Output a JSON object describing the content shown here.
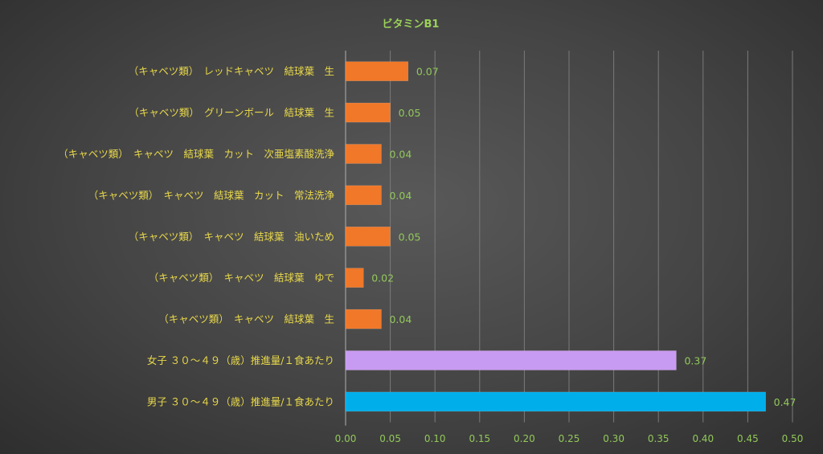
{
  "chart_data": {
    "type": "bar",
    "orientation": "horizontal",
    "title": "ビタミンB1",
    "xlim": [
      0,
      0.5
    ],
    "x_ticks": [
      "0.00",
      "0.05",
      "0.10",
      "0.15",
      "0.20",
      "0.25",
      "0.30",
      "0.35",
      "0.40",
      "0.45",
      "0.50"
    ],
    "grid": true,
    "legend": "none",
    "categories": [
      "（キャベツ類）　レッドキャベツ　結球葉　生",
      "（キャベツ類）　グリーンボール　結球葉　生",
      "（キャベツ類）　キャベツ　結球葉　カット　次亜塩素酸洗浄",
      "（キャベツ類）　キャベツ　結球葉　カット　常法洗浄",
      "（キャベツ類）　キャベツ　結球葉　油いため",
      "（キャベツ類）　キャベツ　結球葉　ゆで",
      "（キャベツ類）　キャベツ　結球葉　生",
      "女子 ３０～４９（歳）推進量/１食あたり",
      "男子 ３０～４９（歳）推進量/１食あたり"
    ],
    "values": [
      0.07,
      0.05,
      0.04,
      0.04,
      0.05,
      0.02,
      0.04,
      0.37,
      0.47
    ],
    "value_labels": [
      "0.07",
      "0.05",
      "0.04",
      "0.04",
      "0.05",
      "0.02",
      "0.04",
      "0.37",
      "0.47"
    ],
    "bar_colors": [
      "#f07828",
      "#f07828",
      "#f07828",
      "#f07828",
      "#f07828",
      "#f07828",
      "#f07828",
      "#c89bf2",
      "#00aeea"
    ]
  }
}
